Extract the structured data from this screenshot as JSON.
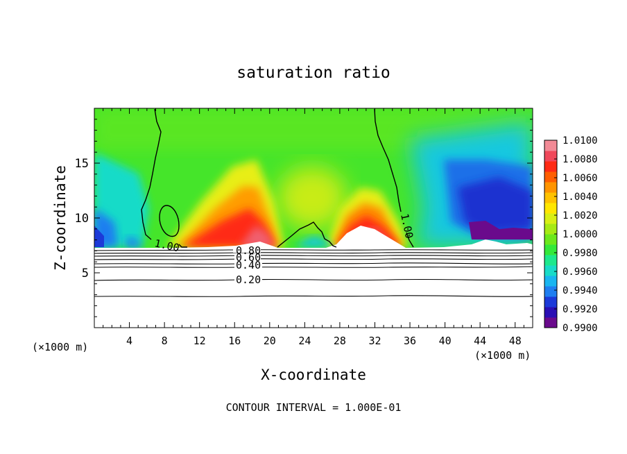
{
  "chart_data": {
    "type": "heatmap",
    "title": "saturation ratio",
    "xlabel": "X-coordinate",
    "ylabel": "Z-coordinate",
    "x_unit_label": "(×1000 m)",
    "x_unit_label_right": "(×1000 m)",
    "footer": "CONTOUR INTERVAL = 1.000E-01",
    "xlim": [
      0,
      50
    ],
    "ylim": [
      0,
      20
    ],
    "x_ticks": [
      4,
      8,
      12,
      16,
      20,
      24,
      28,
      32,
      36,
      40,
      44,
      48
    ],
    "x_tick_labels": [
      "4",
      "8",
      "12",
      "16",
      "20",
      "24",
      "28",
      "32",
      "36",
      "40",
      "44",
      "48"
    ],
    "y_ticks": [
      5,
      10,
      15
    ],
    "y_tick_labels": [
      "5",
      "10",
      "15"
    ],
    "colorbar": {
      "range": [
        0.99,
        1.01
      ],
      "ticks": [
        1.01,
        1.008,
        1.006,
        1.004,
        1.002,
        1.0,
        0.998,
        0.996,
        0.994,
        0.992,
        0.99
      ],
      "tick_labels": [
        "1.0100",
        "1.0080",
        "1.0060",
        "1.0040",
        "1.0020",
        "1.0000",
        "0.9980",
        "0.9960",
        "0.9940",
        "0.9920",
        "0.9900"
      ],
      "colors": [
        "#6a0a8c",
        "#2a0fb4",
        "#1c3ad8",
        "#1f7ef0",
        "#19b5f0",
        "#19dbc8",
        "#1ee88c",
        "#34e83a",
        "#6ce81c",
        "#a6ea14",
        "#d8ef14",
        "#ffe600",
        "#ffc200",
        "#ff9400",
        "#ff5e00",
        "#ff2a14",
        "#f0485a",
        "#f28a96"
      ]
    },
    "contours": [
      {
        "level": 0.2,
        "label": "0.20"
      },
      {
        "level": 0.4,
        "label": "0.40"
      },
      {
        "level": 0.6,
        "label": "0.60"
      },
      {
        "level": 0.8,
        "label": "0.80"
      },
      {
        "level": 1.0,
        "label": "1.00"
      },
      {
        "level": 1.0,
        "label": "1.00"
      }
    ],
    "terrain_surface_z_approx": 7.2
  }
}
